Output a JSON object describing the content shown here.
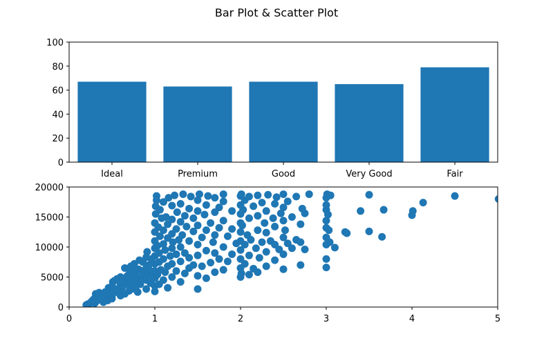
{
  "figure": {
    "title": "Bar Plot & Scatter Plot"
  },
  "chart_data": [
    {
      "type": "bar",
      "categories": [
        "Ideal",
        "Premium",
        "Good",
        "Very Good",
        "Fair"
      ],
      "values": [
        67,
        63,
        67,
        65,
        79
      ],
      "ylim": [
        0,
        100
      ],
      "yticks": [
        "0",
        "20",
        "40",
        "60",
        "80",
        "100"
      ],
      "color": "#1f77b4",
      "grid": false
    },
    {
      "type": "scatter",
      "xlim": [
        0,
        5
      ],
      "ylim": [
        0,
        20000
      ],
      "xticks": [
        "0",
        "1",
        "2",
        "3",
        "4",
        "5"
      ],
      "yticks": [
        "0",
        "5000",
        "10000",
        "15000",
        "20000"
      ],
      "color": "#1f77b4",
      "grid": false,
      "points": [
        [
          0.2,
          350
        ],
        [
          0.22,
          500
        ],
        [
          0.23,
          420
        ],
        [
          0.25,
          700
        ],
        [
          0.26,
          900
        ],
        [
          0.28,
          1200
        ],
        [
          0.3,
          650
        ],
        [
          0.3,
          1500
        ],
        [
          0.31,
          2200
        ],
        [
          0.32,
          1000
        ],
        [
          0.33,
          1800
        ],
        [
          0.35,
          2400
        ],
        [
          0.36,
          1300
        ],
        [
          0.38,
          2000
        ],
        [
          0.4,
          800
        ],
        [
          0.4,
          1600
        ],
        [
          0.41,
          2300
        ],
        [
          0.42,
          2500
        ],
        [
          0.45,
          1100
        ],
        [
          0.45,
          2100
        ],
        [
          0.46,
          3200
        ],
        [
          0.48,
          1700
        ],
        [
          0.5,
          1400
        ],
        [
          0.5,
          2800
        ],
        [
          0.5,
          3500
        ],
        [
          0.51,
          4200
        ],
        [
          0.52,
          2300
        ],
        [
          0.53,
          4400
        ],
        [
          0.55,
          3000
        ],
        [
          0.56,
          4700
        ],
        [
          0.58,
          2600
        ],
        [
          0.6,
          1900
        ],
        [
          0.6,
          3800
        ],
        [
          0.6,
          5000
        ],
        [
          0.62,
          3300
        ],
        [
          0.63,
          4600
        ],
        [
          0.65,
          2200
        ],
        [
          0.65,
          6500
        ],
        [
          0.66,
          4100
        ],
        [
          0.68,
          5200
        ],
        [
          0.7,
          2700
        ],
        [
          0.7,
          3600
        ],
        [
          0.7,
          4800
        ],
        [
          0.71,
          5800
        ],
        [
          0.72,
          6800
        ],
        [
          0.73,
          3000
        ],
        [
          0.75,
          4300
        ],
        [
          0.75,
          5500
        ],
        [
          0.76,
          7200
        ],
        [
          0.78,
          3500
        ],
        [
          0.78,
          6100
        ],
        [
          0.8,
          2500
        ],
        [
          0.8,
          4000
        ],
        [
          0.8,
          5000
        ],
        [
          0.81,
          6300
        ],
        [
          0.82,
          7800
        ],
        [
          0.83,
          3800
        ],
        [
          0.85,
          4600
        ],
        [
          0.85,
          6000
        ],
        [
          0.86,
          7500
        ],
        [
          0.88,
          5200
        ],
        [
          0.9,
          3000
        ],
        [
          0.9,
          4500
        ],
        [
          0.9,
          6500
        ],
        [
          0.9,
          8300
        ],
        [
          0.91,
          9200
        ],
        [
          0.92,
          5500
        ],
        [
          0.93,
          7000
        ],
        [
          0.95,
          4000
        ],
        [
          0.95,
          6000
        ],
        [
          0.96,
          8000
        ],
        [
          0.98,
          5000
        ],
        [
          1.0,
          2600
        ],
        [
          1.0,
          3500
        ],
        [
          1.0,
          4800
        ],
        [
          1.0,
          6000
        ],
        [
          1.0,
          7200
        ],
        [
          1.0,
          8500
        ],
        [
          1.0,
          9800
        ],
        [
          1.0,
          11000
        ],
        [
          1.0,
          12500
        ],
        [
          1.0,
          14000
        ],
        [
          1.01,
          15500
        ],
        [
          1.01,
          16800
        ],
        [
          1.02,
          17800
        ],
        [
          1.02,
          18500
        ],
        [
          1.03,
          5400
        ],
        [
          1.03,
          10200
        ],
        [
          1.04,
          13300
        ],
        [
          1.05,
          3800
        ],
        [
          1.05,
          7500
        ],
        [
          1.05,
          9000
        ],
        [
          1.06,
          11800
        ],
        [
          1.06,
          16200
        ],
        [
          1.07,
          6200
        ],
        [
          1.08,
          14800
        ],
        [
          1.1,
          4500
        ],
        [
          1.1,
          8000
        ],
        [
          1.1,
          10500
        ],
        [
          1.1,
          12800
        ],
        [
          1.1,
          17500
        ],
        [
          1.12,
          5800
        ],
        [
          1.12,
          9500
        ],
        [
          1.13,
          15000
        ],
        [
          1.15,
          3200
        ],
        [
          1.15,
          6800
        ],
        [
          1.15,
          11500
        ],
        [
          1.15,
          13800
        ],
        [
          1.16,
          18200
        ],
        [
          1.18,
          8500
        ],
        [
          1.2,
          5000
        ],
        [
          1.2,
          7200
        ],
        [
          1.2,
          9800
        ],
        [
          1.2,
          12200
        ],
        [
          1.2,
          14600
        ],
        [
          1.2,
          16900
        ],
        [
          1.21,
          10800
        ],
        [
          1.23,
          18600
        ],
        [
          1.25,
          6000
        ],
        [
          1.25,
          8800
        ],
        [
          1.25,
          13000
        ],
        [
          1.26,
          15800
        ],
        [
          1.28,
          11200
        ],
        [
          1.3,
          4200
        ],
        [
          1.3,
          7600
        ],
        [
          1.3,
          10000
        ],
        [
          1.3,
          14200
        ],
        [
          1.3,
          17200
        ],
        [
          1.32,
          12000
        ],
        [
          1.33,
          18800
        ],
        [
          1.35,
          5600
        ],
        [
          1.35,
          9000
        ],
        [
          1.35,
          15200
        ],
        [
          1.37,
          13400
        ],
        [
          1.4,
          6500
        ],
        [
          1.4,
          8200
        ],
        [
          1.4,
          11000
        ],
        [
          1.4,
          16400
        ],
        [
          1.42,
          18400
        ],
        [
          1.45,
          7000
        ],
        [
          1.45,
          12600
        ],
        [
          1.45,
          14800
        ],
        [
          1.5,
          3000
        ],
        [
          1.5,
          5200
        ],
        [
          1.5,
          8600
        ],
        [
          1.5,
          10400
        ],
        [
          1.5,
          13600
        ],
        [
          1.5,
          16000
        ],
        [
          1.5,
          17800
        ],
        [
          1.52,
          18800
        ],
        [
          1.55,
          6800
        ],
        [
          1.55,
          11600
        ],
        [
          1.58,
          15400
        ],
        [
          1.6,
          4800
        ],
        [
          1.6,
          9400
        ],
        [
          1.6,
          12800
        ],
        [
          1.6,
          17000
        ],
        [
          1.62,
          18500
        ],
        [
          1.65,
          7400
        ],
        [
          1.65,
          14000
        ],
        [
          1.68,
          10800
        ],
        [
          1.7,
          5800
        ],
        [
          1.7,
          9000
        ],
        [
          1.7,
          12000
        ],
        [
          1.7,
          15800
        ],
        [
          1.7,
          18200
        ],
        [
          1.75,
          8000
        ],
        [
          1.75,
          13200
        ],
        [
          1.75,
          16600
        ],
        [
          1.8,
          6200
        ],
        [
          1.8,
          10000
        ],
        [
          1.8,
          14400
        ],
        [
          1.8,
          17600
        ],
        [
          1.8,
          18800
        ],
        [
          1.85,
          7600
        ],
        [
          1.85,
          11800
        ],
        [
          1.9,
          8800
        ],
        [
          1.9,
          13000
        ],
        [
          1.9,
          16000
        ],
        [
          1.95,
          10600
        ],
        [
          2.0,
          5000
        ],
        [
          2.0,
          6500
        ],
        [
          2.0,
          8000
        ],
        [
          2.0,
          9500
        ],
        [
          2.0,
          11000
        ],
        [
          2.0,
          12500
        ],
        [
          2.0,
          14000
        ],
        [
          2.0,
          15500
        ],
        [
          2.0,
          17000
        ],
        [
          2.0,
          18500
        ],
        [
          2.01,
          5600
        ],
        [
          2.01,
          18800
        ],
        [
          2.02,
          13600
        ],
        [
          2.03,
          16200
        ],
        [
          2.05,
          7200
        ],
        [
          2.05,
          10400
        ],
        [
          2.05,
          17800
        ],
        [
          2.08,
          12000
        ],
        [
          2.1,
          5400
        ],
        [
          2.1,
          8600
        ],
        [
          2.1,
          14800
        ],
        [
          2.1,
          18400
        ],
        [
          2.12,
          11200
        ],
        [
          2.15,
          6400
        ],
        [
          2.15,
          16800
        ],
        [
          2.18,
          9800
        ],
        [
          2.2,
          5800
        ],
        [
          2.2,
          12800
        ],
        [
          2.2,
          15200
        ],
        [
          2.2,
          18600
        ],
        [
          2.22,
          8200
        ],
        [
          2.25,
          10800
        ],
        [
          2.25,
          17400
        ],
        [
          2.28,
          14000
        ],
        [
          2.3,
          6800
        ],
        [
          2.3,
          9200
        ],
        [
          2.3,
          12400
        ],
        [
          2.3,
          16000
        ],
        [
          2.32,
          18700
        ],
        [
          2.35,
          11000
        ],
        [
          2.38,
          14800
        ],
        [
          2.4,
          7800
        ],
        [
          2.4,
          10400
        ],
        [
          2.4,
          13400
        ],
        [
          2.4,
          17200
        ],
        [
          2.42,
          18300
        ],
        [
          2.45,
          9600
        ],
        [
          2.47,
          15600
        ],
        [
          2.5,
          6300
        ],
        [
          2.5,
          8800
        ],
        [
          2.5,
          11600
        ],
        [
          2.5,
          14400
        ],
        [
          2.5,
          16600
        ],
        [
          2.5,
          18800
        ],
        [
          2.52,
          12800
        ],
        [
          2.55,
          10600
        ],
        [
          2.55,
          17600
        ],
        [
          2.6,
          9800
        ],
        [
          2.6,
          15000
        ],
        [
          2.65,
          11200
        ],
        [
          2.65,
          18400
        ],
        [
          2.7,
          7000
        ],
        [
          2.7,
          10800
        ],
        [
          2.7,
          13800
        ],
        [
          2.72,
          16400
        ],
        [
          2.75,
          9600
        ],
        [
          2.75,
          15600
        ],
        [
          2.8,
          18800
        ],
        [
          3.0,
          6600
        ],
        [
          3.0,
          8000
        ],
        [
          3.0,
          10400
        ],
        [
          3.0,
          11600
        ],
        [
          3.0,
          13200
        ],
        [
          3.0,
          14400
        ],
        [
          3.0,
          16200
        ],
        [
          3.0,
          17000
        ],
        [
          3.0,
          18200
        ],
        [
          3.01,
          18800
        ],
        [
          3.02,
          15400
        ],
        [
          3.03,
          12800
        ],
        [
          3.04,
          10800
        ],
        [
          3.05,
          18600
        ],
        [
          3.1,
          9900
        ],
        [
          3.22,
          12500
        ],
        [
          3.24,
          12300
        ],
        [
          3.4,
          16000
        ],
        [
          3.5,
          12600
        ],
        [
          3.5,
          18700
        ],
        [
          3.65,
          11700
        ],
        [
          3.67,
          16200
        ],
        [
          4.0,
          15300
        ],
        [
          4.01,
          16000
        ],
        [
          4.13,
          17400
        ],
        [
          4.5,
          18500
        ],
        [
          5.01,
          18000
        ]
      ]
    }
  ]
}
